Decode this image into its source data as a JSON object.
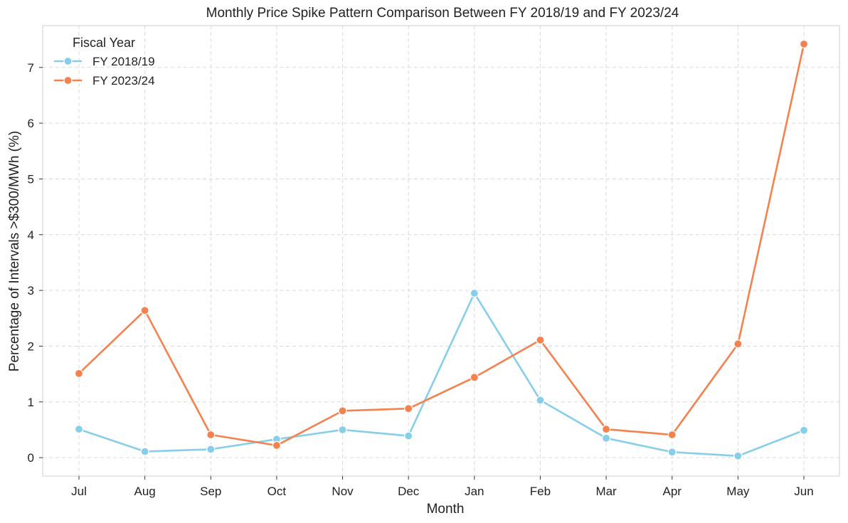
{
  "chart_data": {
    "type": "line",
    "title": "Monthly Price Spike Pattern Comparison Between FY 2018/19 and FY 2023/24",
    "xlabel": "Month",
    "ylabel": "Percentage of Intervals >$300/MWh (%)",
    "categories": [
      "Jul",
      "Aug",
      "Sep",
      "Oct",
      "Nov",
      "Dec",
      "Jan",
      "Feb",
      "Mar",
      "Apr",
      "May",
      "Jun"
    ],
    "yticks": [
      0,
      1,
      2,
      3,
      4,
      5,
      6,
      7
    ],
    "ylim": [
      -0.33,
      7.75
    ],
    "grid": true,
    "legend": {
      "title": "Fiscal Year",
      "position": "top-left"
    },
    "series": [
      {
        "name": "FY 2018/19",
        "color": "#87CEEB",
        "values": [
          0.51,
          0.11,
          0.15,
          0.33,
          0.5,
          0.39,
          2.95,
          1.03,
          0.35,
          0.1,
          0.03,
          0.49
        ]
      },
      {
        "name": "FY 2023/24",
        "color": "#F5814E",
        "values": [
          1.51,
          2.64,
          0.41,
          0.22,
          0.84,
          0.88,
          1.44,
          2.11,
          0.51,
          0.41,
          2.04,
          7.42
        ]
      }
    ]
  }
}
